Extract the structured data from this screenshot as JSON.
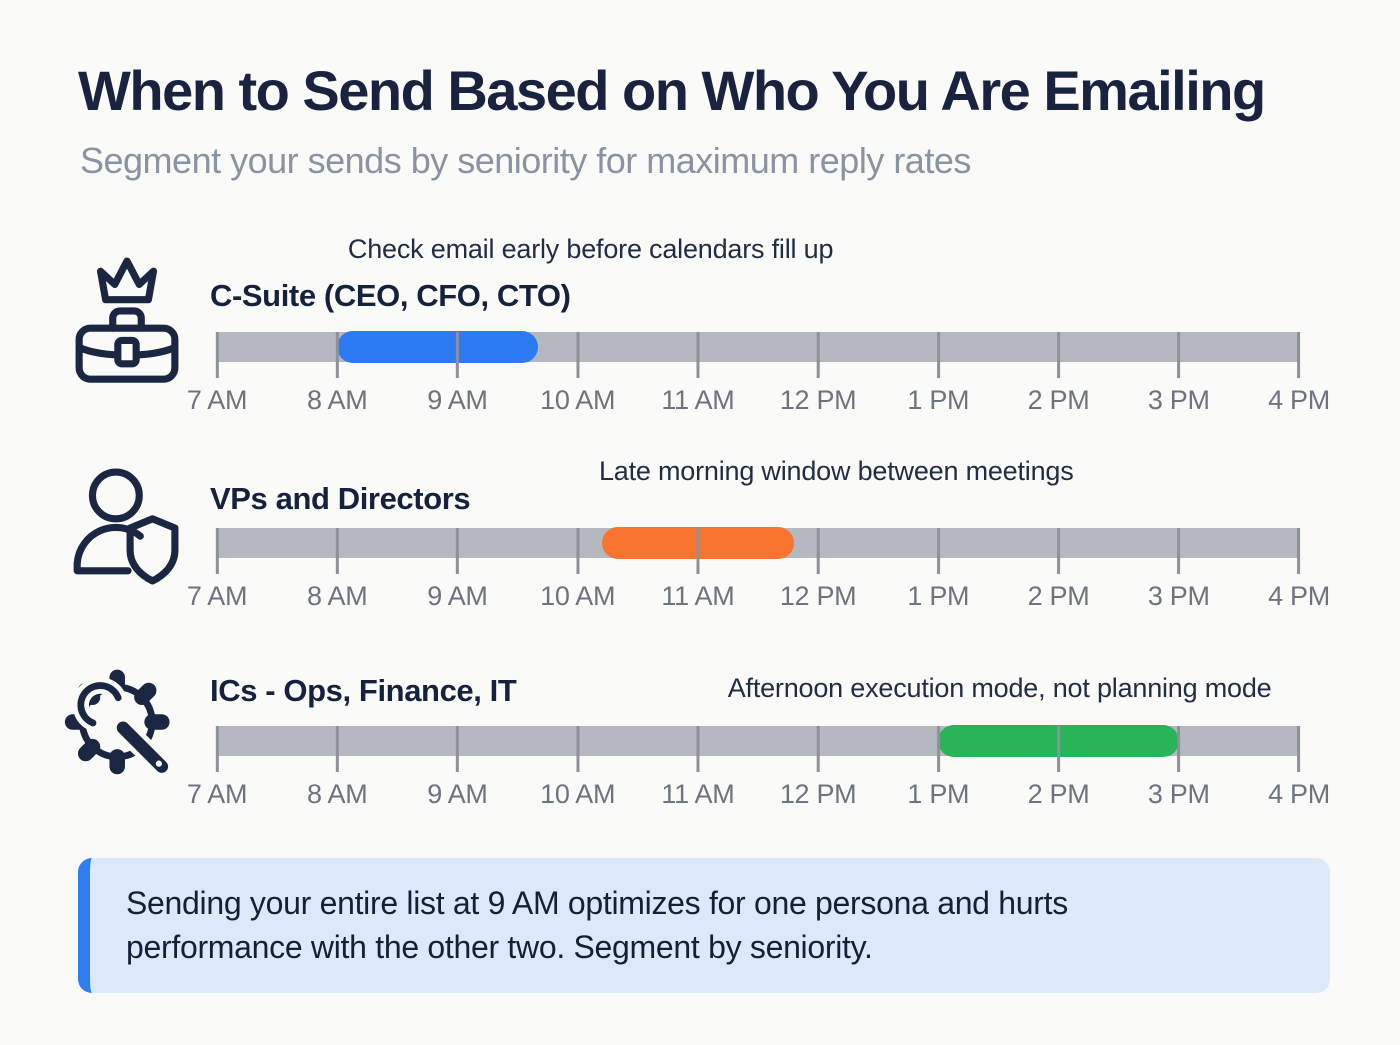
{
  "header": {
    "title": "When to Send Based on Who You Are Emailing",
    "subtitle": "Segment your sends by seniority for maximum reply rates"
  },
  "chart_data": {
    "type": "bar",
    "subtype": "horizontal-time-window-timeline",
    "title": "When to Send Based on Who You Are Emailing",
    "x_axis": {
      "ticks": [
        "7 AM",
        "8 AM",
        "9 AM",
        "10 AM",
        "11 AM",
        "12 PM",
        "1 PM",
        "2 PM",
        "3 PM",
        "4 PM"
      ],
      "start_hour": 7,
      "end_hour": 16,
      "grid": false
    },
    "track_color": "#b5b8be",
    "legend_position": "none",
    "series": [
      {
        "name": "C-Suite (CEO, CFO, CTO)",
        "icon": "briefcase-crown-icon",
        "annotation": "Check email early before calendars fill up",
        "window_start": "8:00 AM",
        "window_end": "9:40 AM",
        "window_start_hour": 8.0,
        "window_end_hour": 9.67,
        "color": "#2b7bf3"
      },
      {
        "name": "VPs and Directors",
        "icon": "person-shield-icon",
        "annotation": "Late morning window between meetings",
        "window_start": "10:15 AM",
        "window_end": "11:45 AM",
        "window_start_hour": 10.2,
        "window_end_hour": 11.8,
        "color": "#f8742f"
      },
      {
        "name": "ICs - Ops, Finance, IT",
        "icon": "gear-wrench-icon",
        "annotation": "Afternoon execution mode, not planning mode",
        "window_start": "1:00 PM",
        "window_end": "3:00 PM",
        "window_start_hour": 13.0,
        "window_end_hour": 15.0,
        "color": "#2ab45a"
      }
    ]
  },
  "callout": {
    "text": "Sending your entire list at 9 AM optimizes for one persona and hurts performance with the other two. Segment by seniority.",
    "accent_color": "#2e7ef2",
    "background_color": "#dbe9fa"
  }
}
